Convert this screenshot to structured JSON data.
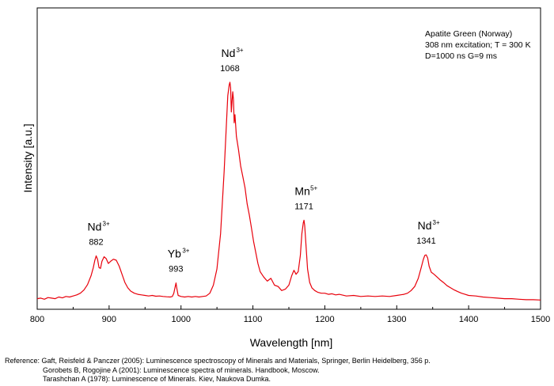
{
  "chart_data": {
    "type": "line",
    "xlabel": "Wavelength [nm]",
    "ylabel": "Intensity [a.u.]",
    "xlim": [
      800,
      1500
    ],
    "ylim": [
      0,
      1.0
    ],
    "x_ticks": [
      800,
      900,
      1000,
      1100,
      1200,
      1300,
      1400,
      1500
    ],
    "grid": false,
    "line_color": "#e8000b",
    "info": [
      "Apatite Green (Norway)",
      "308 nm excitation; T = 300 K",
      "D=1000 ns G=9 ms"
    ],
    "annotations": [
      {
        "ion": "Nd",
        "sup": "3+",
        "value": "882",
        "x": 882
      },
      {
        "ion": "Yb",
        "sup": "3+",
        "value": "993",
        "x": 993
      },
      {
        "ion": "Nd",
        "sup": "3+",
        "value": "1068",
        "x": 1068
      },
      {
        "ion": "Mn",
        "sup": "5+",
        "value": "1171",
        "x": 1171
      },
      {
        "ion": "Nd",
        "sup": "3+",
        "value": "1341",
        "x": 1341
      }
    ],
    "series": [
      {
        "points": [
          [
            800,
            0.01
          ],
          [
            805,
            0.012
          ],
          [
            810,
            0.008
          ],
          [
            815,
            0.014
          ],
          [
            820,
            0.012
          ],
          [
            825,
            0.01
          ],
          [
            830,
            0.016
          ],
          [
            835,
            0.013
          ],
          [
            840,
            0.018
          ],
          [
            845,
            0.016
          ],
          [
            850,
            0.02
          ],
          [
            855,
            0.024
          ],
          [
            860,
            0.03
          ],
          [
            865,
            0.042
          ],
          [
            870,
            0.062
          ],
          [
            875,
            0.095
          ],
          [
            878,
            0.125
          ],
          [
            880,
            0.15
          ],
          [
            882,
            0.168
          ],
          [
            884,
            0.155
          ],
          [
            886,
            0.125
          ],
          [
            888,
            0.122
          ],
          [
            890,
            0.148
          ],
          [
            893,
            0.165
          ],
          [
            896,
            0.158
          ],
          [
            899,
            0.14
          ],
          [
            902,
            0.148
          ],
          [
            906,
            0.156
          ],
          [
            910,
            0.152
          ],
          [
            914,
            0.13
          ],
          [
            918,
            0.1
          ],
          [
            922,
            0.07
          ],
          [
            926,
            0.05
          ],
          [
            930,
            0.038
          ],
          [
            935,
            0.03
          ],
          [
            940,
            0.026
          ],
          [
            945,
            0.024
          ],
          [
            950,
            0.022
          ],
          [
            955,
            0.02
          ],
          [
            960,
            0.022
          ],
          [
            965,
            0.019
          ],
          [
            970,
            0.02
          ],
          [
            975,
            0.018
          ],
          [
            980,
            0.017
          ],
          [
            985,
            0.016
          ],
          [
            988,
            0.018
          ],
          [
            990,
            0.03
          ],
          [
            992,
            0.055
          ],
          [
            993,
            0.068
          ],
          [
            994,
            0.05
          ],
          [
            996,
            0.022
          ],
          [
            1000,
            0.018
          ],
          [
            1005,
            0.016
          ],
          [
            1010,
            0.018
          ],
          [
            1015,
            0.016
          ],
          [
            1020,
            0.018
          ],
          [
            1025,
            0.016
          ],
          [
            1030,
            0.018
          ],
          [
            1035,
            0.02
          ],
          [
            1040,
            0.03
          ],
          [
            1045,
            0.06
          ],
          [
            1050,
            0.12
          ],
          [
            1055,
            0.25
          ],
          [
            1060,
            0.48
          ],
          [
            1063,
            0.65
          ],
          [
            1065,
            0.76
          ],
          [
            1067,
            0.8
          ],
          [
            1068,
            0.81
          ],
          [
            1069,
            0.79
          ],
          [
            1070,
            0.7
          ],
          [
            1071,
            0.74
          ],
          [
            1072,
            0.775
          ],
          [
            1073,
            0.745
          ],
          [
            1074,
            0.66
          ],
          [
            1075,
            0.69
          ],
          [
            1077,
            0.61
          ],
          [
            1080,
            0.56
          ],
          [
            1083,
            0.5
          ],
          [
            1086,
            0.46
          ],
          [
            1089,
            0.42
          ],
          [
            1092,
            0.36
          ],
          [
            1095,
            0.32
          ],
          [
            1098,
            0.27
          ],
          [
            1101,
            0.22
          ],
          [
            1104,
            0.18
          ],
          [
            1107,
            0.14
          ],
          [
            1110,
            0.11
          ],
          [
            1115,
            0.09
          ],
          [
            1120,
            0.075
          ],
          [
            1125,
            0.085
          ],
          [
            1130,
            0.06
          ],
          [
            1135,
            0.055
          ],
          [
            1140,
            0.04
          ],
          [
            1145,
            0.045
          ],
          [
            1150,
            0.06
          ],
          [
            1154,
            0.095
          ],
          [
            1157,
            0.115
          ],
          [
            1160,
            0.1
          ],
          [
            1163,
            0.11
          ],
          [
            1166,
            0.17
          ],
          [
            1168,
            0.25
          ],
          [
            1170,
            0.29
          ],
          [
            1171,
            0.3
          ],
          [
            1172,
            0.28
          ],
          [
            1174,
            0.2
          ],
          [
            1176,
            0.12
          ],
          [
            1179,
            0.07
          ],
          [
            1182,
            0.05
          ],
          [
            1186,
            0.04
          ],
          [
            1190,
            0.034
          ],
          [
            1195,
            0.03
          ],
          [
            1200,
            0.03
          ],
          [
            1205,
            0.026
          ],
          [
            1210,
            0.028
          ],
          [
            1215,
            0.024
          ],
          [
            1220,
            0.026
          ],
          [
            1230,
            0.02
          ],
          [
            1240,
            0.022
          ],
          [
            1250,
            0.018
          ],
          [
            1260,
            0.02
          ],
          [
            1270,
            0.018
          ],
          [
            1280,
            0.02
          ],
          [
            1290,
            0.018
          ],
          [
            1300,
            0.022
          ],
          [
            1310,
            0.026
          ],
          [
            1315,
            0.03
          ],
          [
            1320,
            0.04
          ],
          [
            1325,
            0.055
          ],
          [
            1330,
            0.085
          ],
          [
            1334,
            0.125
          ],
          [
            1337,
            0.155
          ],
          [
            1339,
            0.17
          ],
          [
            1341,
            0.172
          ],
          [
            1343,
            0.16
          ],
          [
            1345,
            0.13
          ],
          [
            1348,
            0.108
          ],
          [
            1352,
            0.1
          ],
          [
            1356,
            0.09
          ],
          [
            1360,
            0.08
          ],
          [
            1365,
            0.07
          ],
          [
            1370,
            0.058
          ],
          [
            1375,
            0.05
          ],
          [
            1380,
            0.042
          ],
          [
            1385,
            0.036
          ],
          [
            1390,
            0.03
          ],
          [
            1395,
            0.026
          ],
          [
            1400,
            0.022
          ],
          [
            1410,
            0.02
          ],
          [
            1420,
            0.016
          ],
          [
            1430,
            0.014
          ],
          [
            1440,
            0.012
          ],
          [
            1450,
            0.01
          ],
          [
            1460,
            0.01
          ],
          [
            1470,
            0.008
          ],
          [
            1480,
            0.006
          ],
          [
            1490,
            0.006
          ],
          [
            1500,
            0.005
          ]
        ]
      }
    ]
  },
  "references": [
    "Reference: Gaft, Reisfeld & Panczer (2005): Luminescence spectroscopy of Minerals and Materials, Springer, Berlin Heidelberg, 356 p.",
    "Gorobets B, Rogojine A (2001): Luminescence spectra of minerals. Handbook, Moscow.",
    "Tarashchan A (1978): Luminescence of Minerals. Kiev, Naukova Dumka."
  ]
}
